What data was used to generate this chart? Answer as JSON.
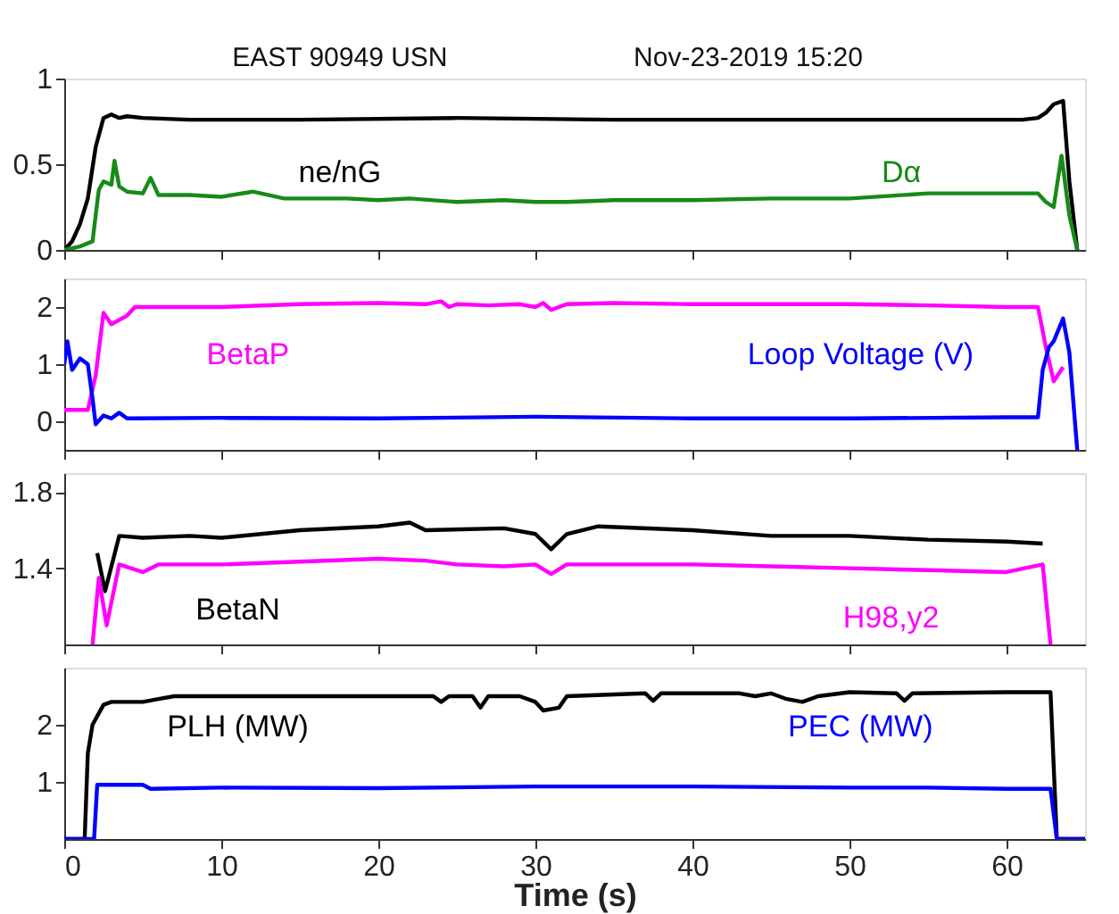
{
  "chart_data": [
    {
      "type": "line",
      "title": "EAST 90949 USN",
      "annotations": [
        "Nov-23-2019 15:20"
      ],
      "xlim": [
        0,
        65
      ],
      "xticks": [
        0,
        10,
        20,
        30,
        40,
        50,
        60
      ],
      "ylim": [
        0,
        1
      ],
      "yticks": [
        0,
        0.5,
        1
      ],
      "tick_labels": "y",
      "grid": false,
      "legend": false,
      "series": [
        {
          "name": "ne/nG",
          "color": "#000000",
          "x": [
            0,
            0.5,
            1,
            1.5,
            2,
            2.5,
            3,
            3.5,
            4,
            5,
            8,
            15,
            25,
            35,
            45,
            55,
            61,
            62,
            62.5,
            63,
            63.6,
            64,
            64.5
          ],
          "values": [
            0,
            0.05,
            0.15,
            0.3,
            0.6,
            0.77,
            0.79,
            0.77,
            0.78,
            0.77,
            0.76,
            0.76,
            0.77,
            0.76,
            0.76,
            0.76,
            0.76,
            0.77,
            0.8,
            0.85,
            0.87,
            0.4,
            0
          ]
        },
        {
          "name": "Dα",
          "color": "#178a17",
          "x": [
            0,
            1,
            1.8,
            2.2,
            2.5,
            3,
            3.2,
            3.5,
            4,
            5,
            5.5,
            6,
            8,
            10,
            12,
            14,
            18,
            20,
            22,
            25,
            28,
            30,
            32,
            35,
            40,
            45,
            50,
            55,
            60,
            62,
            62.5,
            63,
            63.5,
            64,
            64.5
          ],
          "values": [
            0,
            0.02,
            0.05,
            0.35,
            0.4,
            0.38,
            0.52,
            0.37,
            0.34,
            0.33,
            0.42,
            0.32,
            0.32,
            0.31,
            0.34,
            0.3,
            0.3,
            0.29,
            0.3,
            0.28,
            0.29,
            0.28,
            0.28,
            0.29,
            0.29,
            0.3,
            0.3,
            0.33,
            0.33,
            0.33,
            0.28,
            0.25,
            0.55,
            0.2,
            0
          ]
        }
      ]
    },
    {
      "type": "line",
      "xlim": [
        0,
        65
      ],
      "xticks": [
        0,
        10,
        20,
        30,
        40,
        50,
        60
      ],
      "ylim": [
        -0.5,
        2.5
      ],
      "yticks": [
        0,
        1,
        2
      ],
      "tick_labels": "y",
      "grid": false,
      "legend": false,
      "series": [
        {
          "name": "BetaP",
          "color": "#ff00ff",
          "x": [
            0,
            1.5,
            2,
            2.5,
            3,
            4,
            4.5,
            10,
            15,
            20,
            23,
            24,
            24.5,
            25,
            27,
            29,
            30,
            30.5,
            31,
            32,
            35,
            40,
            45,
            50,
            55,
            60,
            62,
            62.5,
            63,
            63.6
          ],
          "values": [
            0.2,
            0.2,
            0.8,
            1.9,
            1.7,
            1.85,
            2.0,
            2.0,
            2.05,
            2.07,
            2.05,
            2.1,
            2.0,
            2.05,
            2.03,
            2.05,
            2.0,
            2.07,
            1.95,
            2.05,
            2.07,
            2.05,
            2.05,
            2.05,
            2.03,
            2.0,
            2.0,
            1.3,
            0.7,
            0.95
          ]
        },
        {
          "name": "Loop Voltage (V)",
          "color": "#0000ff",
          "x": [
            0,
            0.2,
            0.5,
            1,
            1.5,
            1.8,
            2,
            2.5,
            3,
            3.5,
            4,
            10,
            20,
            30,
            40,
            50,
            60,
            62,
            62.3,
            62.7,
            63,
            63.3,
            63.6,
            64,
            64.5
          ],
          "values": [
            1.0,
            1.4,
            0.9,
            1.1,
            1.0,
            0.4,
            -0.05,
            0.1,
            0.05,
            0.15,
            0.05,
            0.06,
            0.05,
            0.08,
            0.05,
            0.05,
            0.07,
            0.07,
            0.9,
            1.3,
            1.4,
            1.6,
            1.8,
            1.2,
            -0.5
          ]
        }
      ]
    },
    {
      "type": "line",
      "xlim": [
        0,
        65
      ],
      "xticks": [
        0,
        10,
        20,
        30,
        40,
        50,
        60
      ],
      "ylim": [
        1,
        1.9
      ],
      "yticks": [
        1.4,
        1.8
      ],
      "tick_labels": "y",
      "grid": false,
      "legend": false,
      "series": [
        {
          "name": "BetaN",
          "color": "#000000",
          "x": [
            2.1,
            2.6,
            3.5,
            5,
            8,
            10,
            15,
            20,
            22,
            23,
            28,
            30,
            31,
            32,
            34,
            40,
            45,
            50,
            55,
            60,
            62.3
          ],
          "values": [
            1.48,
            1.28,
            1.57,
            1.56,
            1.57,
            1.56,
            1.6,
            1.62,
            1.64,
            1.6,
            1.61,
            1.58,
            1.5,
            1.58,
            1.62,
            1.6,
            1.57,
            1.57,
            1.55,
            1.54,
            1.53
          ]
        },
        {
          "name": "H98,y2",
          "color": "#ff00ff",
          "x": [
            1.8,
            2.2,
            2.7,
            3.5,
            5,
            6,
            10,
            20,
            23,
            25,
            28,
            30,
            31,
            32,
            40,
            45,
            50,
            55,
            60,
            62.3,
            62.8
          ],
          "values": [
            1.0,
            1.35,
            1.1,
            1.42,
            1.38,
            1.42,
            1.42,
            1.45,
            1.44,
            1.42,
            1.41,
            1.42,
            1.37,
            1.42,
            1.42,
            1.41,
            1.4,
            1.39,
            1.38,
            1.42,
            1.0
          ]
        }
      ]
    },
    {
      "type": "line",
      "xlabel": "Time (s)",
      "xlim": [
        0,
        65
      ],
      "xticks": [
        0,
        10,
        20,
        30,
        40,
        50,
        60
      ],
      "ylim": [
        0,
        3
      ],
      "yticks": [
        1,
        2
      ],
      "grid": false,
      "legend": false,
      "series": [
        {
          "name": "PLH (MW)",
          "color": "#000000",
          "x": [
            0,
            1.3,
            1.5,
            1.8,
            2.5,
            3,
            5,
            6,
            7,
            20,
            23.5,
            24,
            24.5,
            26,
            26.5,
            27,
            29,
            30,
            30.5,
            31.5,
            32,
            37,
            37.5,
            38,
            43,
            44,
            45,
            46,
            47,
            48,
            50,
            53,
            53.5,
            54,
            60,
            62.8,
            63.2,
            65
          ],
          "values": [
            0,
            0,
            1.5,
            2.0,
            2.35,
            2.4,
            2.4,
            2.45,
            2.5,
            2.5,
            2.5,
            2.4,
            2.5,
            2.5,
            2.3,
            2.5,
            2.5,
            2.4,
            2.25,
            2.3,
            2.5,
            2.55,
            2.42,
            2.55,
            2.55,
            2.5,
            2.55,
            2.45,
            2.4,
            2.5,
            2.57,
            2.55,
            2.42,
            2.55,
            2.57,
            2.57,
            0,
            0
          ]
        },
        {
          "name": "PEC (MW)",
          "color": "#0000ff",
          "x": [
            0,
            1.9,
            2.1,
            5,
            5.5,
            10,
            20,
            30,
            40,
            50,
            55,
            60,
            62.8,
            63.2,
            65
          ],
          "values": [
            0,
            0,
            0.95,
            0.95,
            0.88,
            0.9,
            0.89,
            0.92,
            0.92,
            0.9,
            0.9,
            0.88,
            0.88,
            0,
            0
          ]
        }
      ]
    }
  ]
}
